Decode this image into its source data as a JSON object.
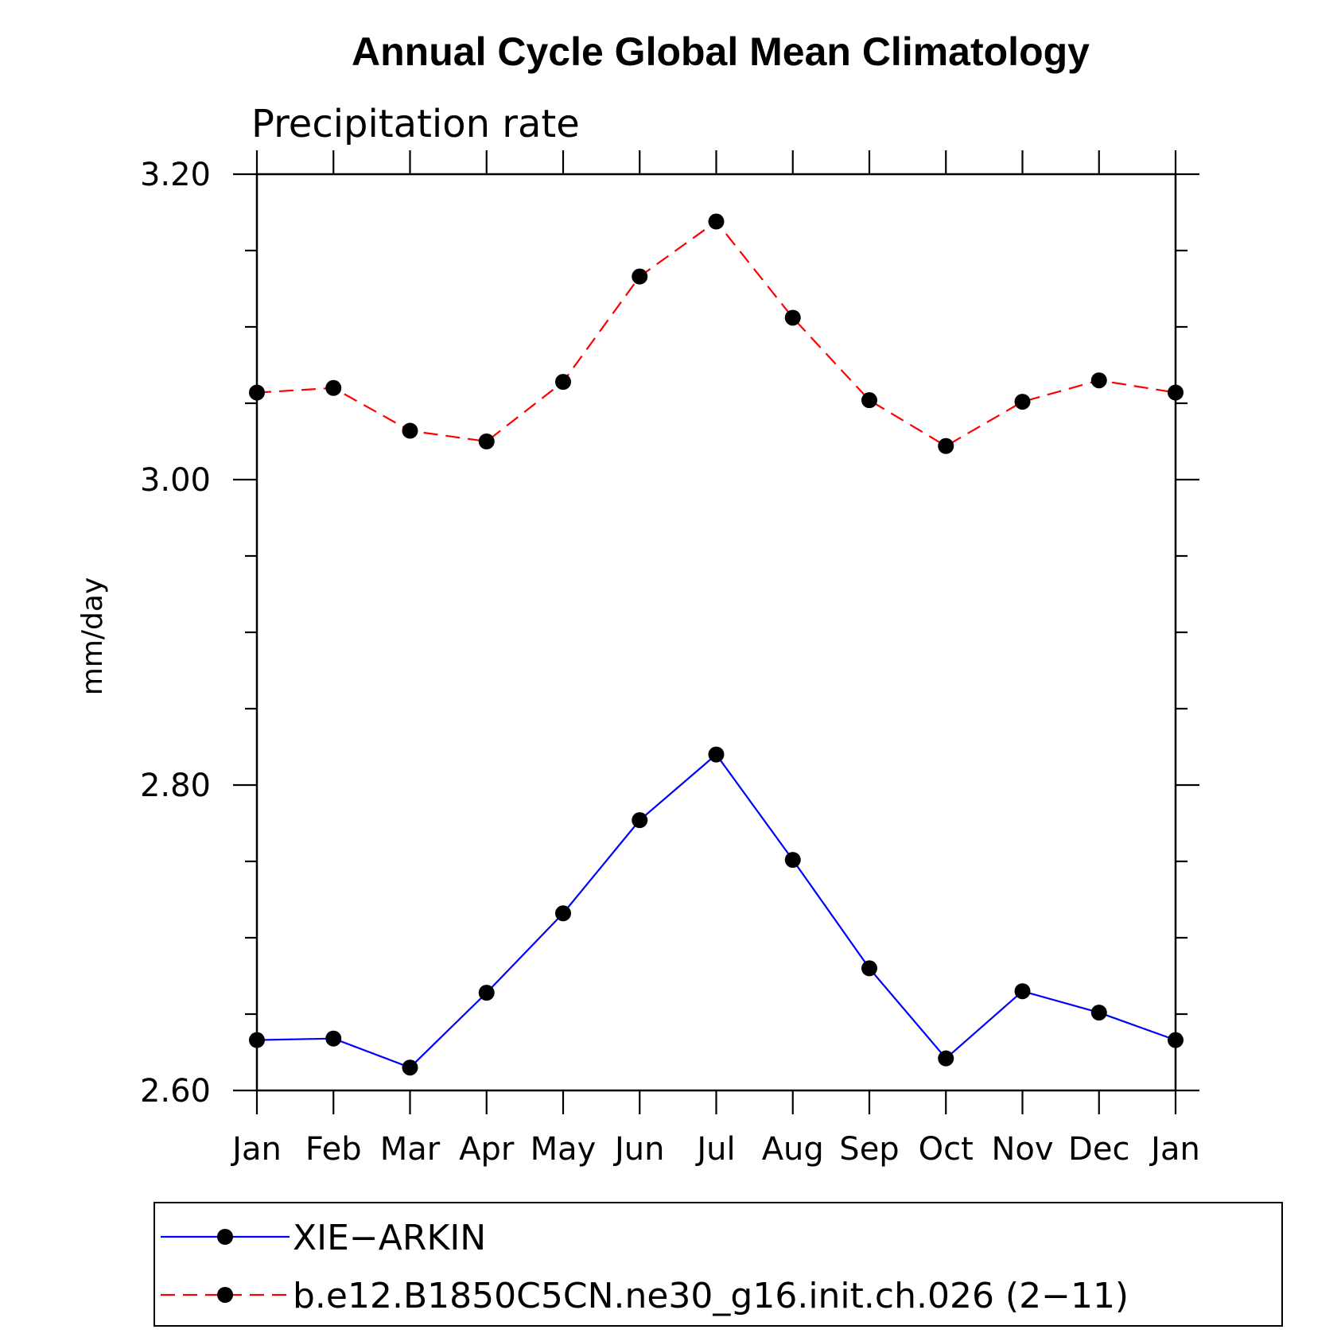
{
  "chart_data": {
    "type": "line",
    "title": "Annual Cycle Global Mean Climatology",
    "subtitle": "Precipitation rate",
    "ylabel": "mm/day",
    "xlabel": "",
    "categories": [
      "Jan",
      "Feb",
      "Mar",
      "Apr",
      "May",
      "Jun",
      "Jul",
      "Aug",
      "Sep",
      "Oct",
      "Nov",
      "Dec",
      "Jan"
    ],
    "ylim": [
      2.6,
      3.2
    ],
    "yticks": [
      "2.60",
      "2.80",
      "3.00",
      "3.20"
    ],
    "grid": false,
    "legend_position": "bottom",
    "series": [
      {
        "name": "XIE−ARKIN",
        "color": "#0000ff",
        "line_style": "solid",
        "marker": "filled-circle",
        "values": [
          2.633,
          2.634,
          2.615,
          2.664,
          2.716,
          2.777,
          2.82,
          2.751,
          2.68,
          2.621,
          2.665,
          2.651,
          2.633
        ]
      },
      {
        "name": "b.e12.B1850C5CN.ne30_g16.init.ch.026 (2−11)",
        "color": "#ff0000",
        "line_style": "dashed",
        "marker": "filled-circle",
        "values": [
          3.057,
          3.06,
          3.032,
          3.025,
          3.064,
          3.133,
          3.169,
          3.106,
          3.052,
          3.022,
          3.051,
          3.065,
          3.057
        ]
      }
    ]
  }
}
